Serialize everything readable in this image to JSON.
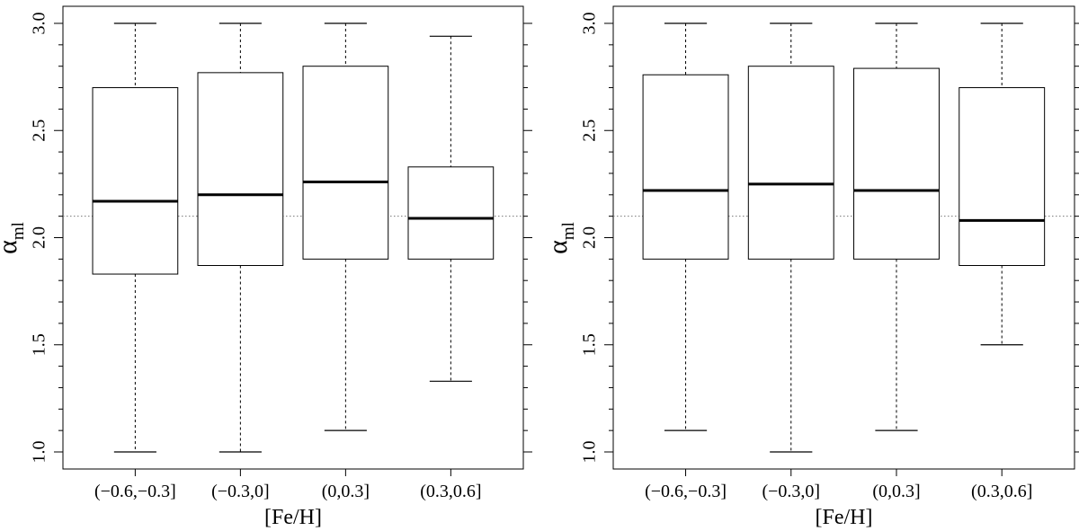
{
  "chart_data": [
    {
      "type": "box",
      "panel": "left",
      "categories": [
        "(−0.6,−0.3]",
        "(−0.3,0]",
        "(0,0.3]",
        "(0.3,0.6]"
      ],
      "boxes": [
        {
          "whisker_low": 1.0,
          "q1": 1.83,
          "median": 2.17,
          "q3": 2.7,
          "whisker_high": 3.0
        },
        {
          "whisker_low": 1.0,
          "q1": 1.87,
          "median": 2.2,
          "q3": 2.77,
          "whisker_high": 3.0
        },
        {
          "whisker_low": 1.1,
          "q1": 1.9,
          "median": 2.26,
          "q3": 2.8,
          "whisker_high": 3.0
        },
        {
          "whisker_low": 1.33,
          "q1": 1.9,
          "median": 2.09,
          "q3": 2.33,
          "whisker_high": 2.94
        }
      ],
      "reference_line": 2.1,
      "xlabel": "[Fe/H]",
      "ylabel": {
        "symbol": "α",
        "subscript": "ml"
      },
      "ylim": [
        1.0,
        3.0
      ],
      "yticks": [
        1.0,
        1.5,
        2.0,
        2.5,
        3.0
      ],
      "ytick_labels": [
        "1.0",
        "1.5",
        "2.0",
        "2.5",
        "3.0"
      ]
    },
    {
      "type": "box",
      "panel": "right",
      "categories": [
        "(−0.6,−0.3]",
        "(−0.3,0]",
        "(0,0.3]",
        "(0.3,0.6]"
      ],
      "boxes": [
        {
          "whisker_low": 1.1,
          "q1": 1.9,
          "median": 2.22,
          "q3": 2.76,
          "whisker_high": 3.0
        },
        {
          "whisker_low": 1.0,
          "q1": 1.9,
          "median": 2.25,
          "q3": 2.8,
          "whisker_high": 3.0
        },
        {
          "whisker_low": 1.1,
          "q1": 1.9,
          "median": 2.22,
          "q3": 2.79,
          "whisker_high": 3.0
        },
        {
          "whisker_low": 1.5,
          "q1": 1.87,
          "median": 2.08,
          "q3": 2.7,
          "whisker_high": 3.0
        }
      ],
      "reference_line": 2.1,
      "xlabel": "[Fe/H]",
      "ylabel": {
        "symbol": "α",
        "subscript": "ml"
      },
      "ylim": [
        1.0,
        3.0
      ],
      "yticks": [
        1.0,
        1.5,
        2.0,
        2.5,
        3.0
      ],
      "ytick_labels": [
        "1.0",
        "1.5",
        "2.0",
        "2.5",
        "3.0"
      ]
    }
  ]
}
